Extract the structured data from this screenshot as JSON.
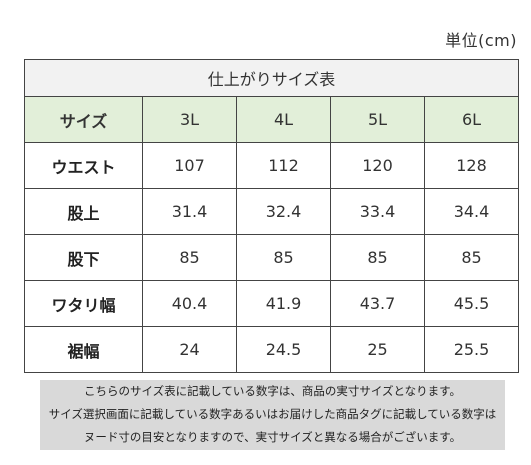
{
  "unit_label": "単位(cm)",
  "table": {
    "title": "仕上がりサイズ表",
    "corner_label": "サイズ",
    "sizes": [
      "3L",
      "4L",
      "5L",
      "6L"
    ],
    "rows": [
      {
        "label": "ウエスト",
        "values": [
          "107",
          "112",
          "120",
          "128"
        ]
      },
      {
        "label": "股上",
        "values": [
          "31.4",
          "32.4",
          "33.4",
          "34.4"
        ]
      },
      {
        "label": "股下",
        "values": [
          "85",
          "85",
          "85",
          "85"
        ]
      },
      {
        "label": "ワタリ幅",
        "values": [
          "40.4",
          "41.9",
          "43.7",
          "45.5"
        ]
      },
      {
        "label": "裾幅",
        "values": [
          "24",
          "24.5",
          "25",
          "25.5"
        ]
      }
    ]
  },
  "notice": {
    "lines": [
      "こちらのサイズ表に記載している数字は、商品の実寸サイズとなります。",
      "サイズ選択画面に記載している数字あるいはお届けした商品タグに記載している数字は",
      "ヌード寸の目安となりますので、実寸サイズと異なる場合がございます。"
    ]
  }
}
